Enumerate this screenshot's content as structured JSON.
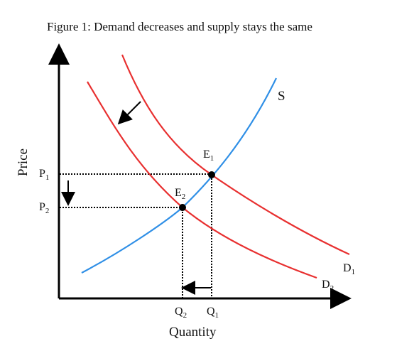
{
  "figure": {
    "title": "Figure 1: Demand decreases and supply stays the same",
    "axes": {
      "y_label": "Price",
      "x_label": "Quantity"
    },
    "curves": {
      "supply": {
        "label": "S",
        "color": "#2f8fe6"
      },
      "demand_original": {
        "label": "D",
        "subscript": "1",
        "color": "#e83030"
      },
      "demand_new": {
        "label": "D",
        "subscript": "2",
        "color": "#e83030"
      }
    },
    "equilibria": {
      "e1": {
        "label": "E",
        "subscript": "1"
      },
      "e2": {
        "label": "E",
        "subscript": "2"
      }
    },
    "prices": {
      "p1": {
        "label": "P",
        "subscript": "1"
      },
      "p2": {
        "label": "P",
        "subscript": "2"
      }
    },
    "quantities": {
      "q1": {
        "label": "Q",
        "subscript": "1"
      },
      "q2": {
        "label": "Q",
        "subscript": "2"
      }
    },
    "colors": {
      "axis": "#000000",
      "guide": "#000000"
    }
  }
}
